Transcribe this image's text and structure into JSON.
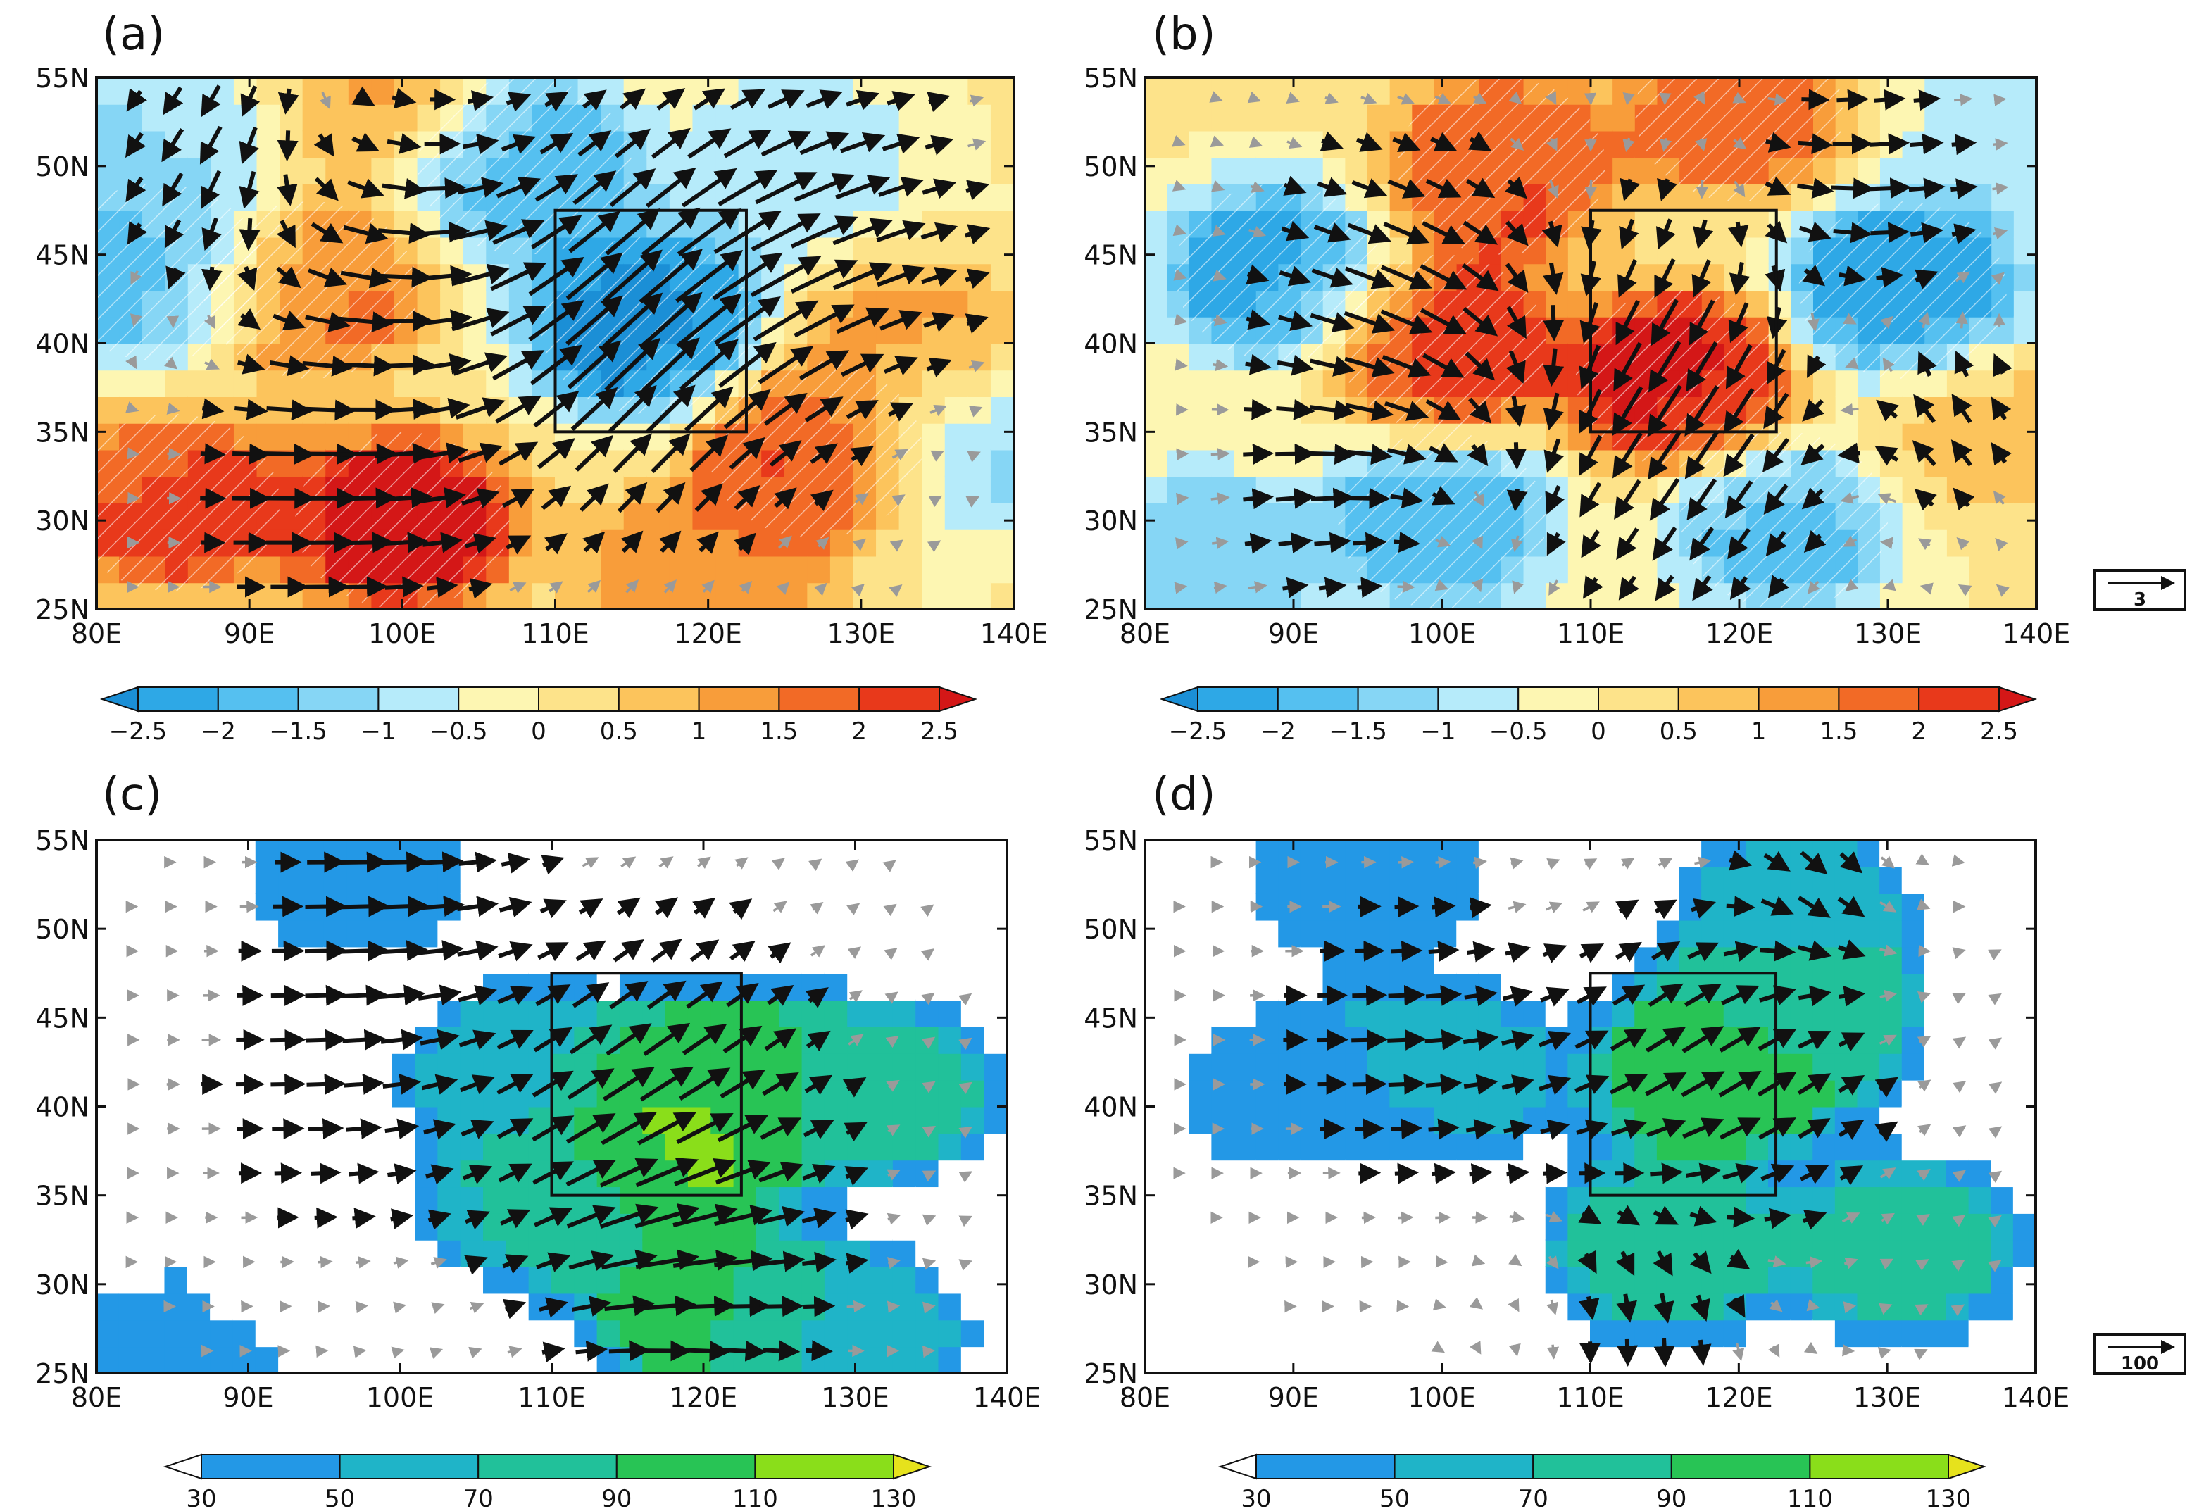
{
  "chart_data": [
    {
      "type": "heatmap",
      "panel_label": "(a)",
      "lon_range": [
        80,
        140
      ],
      "lat_range": [
        25,
        55
      ],
      "x_ticks": [
        "80E",
        "90E",
        "100E",
        "110E",
        "120E",
        "130E",
        "140E"
      ],
      "y_ticks": [
        "25N",
        "30N",
        "35N",
        "40N",
        "45N",
        "50N",
        "55N"
      ],
      "box": {
        "lon": [
          110,
          122.5
        ],
        "lat": [
          35,
          47.5
        ]
      },
      "colormap": "diverging",
      "field_centers": [
        {
          "lon": 116,
          "lat": 41,
          "value": -2.6
        },
        {
          "lon": 84,
          "lat": 44,
          "value": -1.8
        },
        {
          "lon": 108,
          "lat": 50,
          "value": -1.8
        },
        {
          "lon": 137,
          "lat": 34,
          "value": -1.2
        },
        {
          "lon": 126,
          "lat": 50,
          "value": -0.8
        },
        {
          "lon": 86,
          "lat": 52,
          "value": -1.0
        },
        {
          "lon": 100,
          "lat": 30,
          "value": 2.6
        },
        {
          "lon": 85,
          "lat": 31,
          "value": 2.0
        },
        {
          "lon": 127,
          "lat": 34,
          "value": 2.2
        },
        {
          "lon": 94,
          "lat": 43,
          "value": 1.6
        },
        {
          "lon": 98,
          "lat": 54,
          "value": 1.2
        },
        {
          "lon": 133,
          "lat": 40,
          "value": 1.1
        },
        {
          "lon": 120,
          "lat": 27,
          "value": 1.4
        }
      ],
      "wind_centers": [
        {
          "lon": 116,
          "lat": 41,
          "u": 3.2,
          "v": 3.6,
          "r": 12
        },
        {
          "lon": 96,
          "lat": 31,
          "u": 3.6,
          "v": 0,
          "r": 9
        },
        {
          "lon": 100,
          "lat": 45,
          "u": 3,
          "v": -0.6,
          "r": 10
        },
        {
          "lon": 88,
          "lat": 50,
          "u": -1.8,
          "v": -2.4,
          "r": 8
        },
        {
          "lon": 128,
          "lat": 46,
          "u": 3.4,
          "v": 0.8,
          "r": 10
        }
      ],
      "colorbar": {
        "labels": [
          "−2.5",
          "−2",
          "−1.5",
          "−1",
          "−0.5",
          "0",
          "0.5",
          "1",
          "1.5",
          "2",
          "2.5"
        ],
        "colors": [
          "#1b8fd6",
          "#2ea8e6",
          "#55c0f0",
          "#86d6f5",
          "#b6ebfa",
          "#fdf6b2",
          "#fde38a",
          "#fcc45c",
          "#f89d3a",
          "#f26a26",
          "#e8391b",
          "#d41717"
        ]
      }
    },
    {
      "type": "heatmap",
      "panel_label": "(b)",
      "lon_range": [
        80,
        140
      ],
      "lat_range": [
        25,
        55
      ],
      "x_ticks": [
        "80E",
        "90E",
        "100E",
        "110E",
        "120E",
        "130E",
        "140E"
      ],
      "y_ticks": [
        "25N",
        "30N",
        "35N",
        "40N",
        "45N",
        "50N",
        "55N"
      ],
      "box": {
        "lon": [
          110,
          122.5
        ],
        "lat": [
          35,
          47.5
        ]
      },
      "colormap": "diverging",
      "field_centers": [
        {
          "lon": 116,
          "lat": 38,
          "value": 2.6
        },
        {
          "lon": 100,
          "lat": 40,
          "value": 2.3
        },
        {
          "lon": 104,
          "lat": 50,
          "value": 2.0
        },
        {
          "lon": 120,
          "lat": 53,
          "value": 1.6
        },
        {
          "lon": 136,
          "lat": 35,
          "value": 0.8
        },
        {
          "lon": 89,
          "lat": 44,
          "value": -2.1
        },
        {
          "lon": 131,
          "lat": 43,
          "value": -2.4
        },
        {
          "lon": 100,
          "lat": 30,
          "value": -1.7
        },
        {
          "lon": 123,
          "lat": 30,
          "value": -1.6
        },
        {
          "lon": 84,
          "lat": 28,
          "value": -1.2
        },
        {
          "lon": 138,
          "lat": 52,
          "value": -0.7
        }
      ],
      "wind_centers": [
        {
          "lon": 116,
          "lat": 37,
          "u": -2.4,
          "v": -3.4,
          "r": 12
        },
        {
          "lon": 98,
          "lat": 43,
          "u": 3.4,
          "v": -1.2,
          "r": 10
        },
        {
          "lon": 128,
          "lat": 48,
          "u": 3.2,
          "v": 0.4,
          "r": 9
        },
        {
          "lon": 92,
          "lat": 31,
          "u": 2.2,
          "v": 0.4,
          "r": 8
        },
        {
          "lon": 133,
          "lat": 36,
          "u": -1.4,
          "v": 2.2,
          "r": 7
        }
      ],
      "colorbar": {
        "labels": [
          "−2.5",
          "−2",
          "−1.5",
          "−1",
          "−0.5",
          "0",
          "0.5",
          "1",
          "1.5",
          "2",
          "2.5"
        ],
        "colors": [
          "#1b8fd6",
          "#2ea8e6",
          "#55c0f0",
          "#86d6f5",
          "#b6ebfa",
          "#fdf6b2",
          "#fde38a",
          "#fcc45c",
          "#f89d3a",
          "#f26a26",
          "#e8391b",
          "#d41717"
        ]
      },
      "reference_vector": {
        "label": "3"
      }
    },
    {
      "type": "heatmap",
      "panel_label": "(c)",
      "lon_range": [
        80,
        140
      ],
      "lat_range": [
        25,
        55
      ],
      "x_ticks": [
        "80E",
        "90E",
        "100E",
        "110E",
        "120E",
        "130E",
        "140E"
      ],
      "y_ticks": [
        "25N",
        "30N",
        "35N",
        "40N",
        "45N",
        "50N",
        "55N"
      ],
      "box": {
        "lon": [
          110,
          122.5
        ],
        "lat": [
          35,
          47.5
        ]
      },
      "colormap": "magnitude",
      "field_centers": [
        {
          "lon": 117,
          "lat": 39,
          "value": 125
        },
        {
          "lon": 122,
          "lat": 41,
          "value": 100
        },
        {
          "lon": 120,
          "lat": 29,
          "value": 95
        },
        {
          "lon": 110,
          "lat": 35,
          "value": 75
        },
        {
          "lon": 132,
          "lat": 41,
          "value": 70
        },
        {
          "lon": 108,
          "lat": 42,
          "value": 55
        },
        {
          "lon": 97,
          "lat": 53,
          "value": 45
        },
        {
          "lon": 86,
          "lat": 26,
          "value": 40
        },
        {
          "lon": 130,
          "lat": 27,
          "value": 60
        },
        {
          "lon": 86,
          "lat": 42,
          "value": 10
        },
        {
          "lon": 95,
          "lat": 31,
          "value": 5
        }
      ],
      "wind_centers": [
        {
          "lon": 117,
          "lat": 40,
          "u": 80,
          "v": 60,
          "r": 12
        },
        {
          "lon": 100,
          "lat": 53,
          "u": 75,
          "v": 0,
          "r": 8
        },
        {
          "lon": 120,
          "lat": 29,
          "u": 70,
          "v": -20,
          "r": 9
        },
        {
          "lon": 95,
          "lat": 41,
          "u": 55,
          "v": 0,
          "r": 10
        }
      ],
      "colorbar": {
        "labels": [
          "30",
          "50",
          "70",
          "90",
          "110",
          "130"
        ],
        "colors": [
          "#ffffff",
          "#2398e6",
          "#1fb4c8",
          "#21c19a",
          "#28c455",
          "#8ade1a",
          "#e6e21c"
        ]
      }
    },
    {
      "type": "heatmap",
      "panel_label": "(d)",
      "lon_range": [
        80,
        140
      ],
      "lat_range": [
        25,
        55
      ],
      "x_ticks": [
        "80E",
        "90E",
        "100E",
        "110E",
        "120E",
        "130E",
        "140E"
      ],
      "y_ticks": [
        "25N",
        "30N",
        "35N",
        "40N",
        "45N",
        "50N",
        "55N"
      ],
      "box": {
        "lon": [
          110,
          122.5
        ],
        "lat": [
          35,
          47.5
        ]
      },
      "colormap": "magnitude",
      "field_centers": [
        {
          "lon": 118,
          "lat": 42,
          "value": 100
        },
        {
          "lon": 124,
          "lat": 45,
          "value": 85
        },
        {
          "lon": 115,
          "lat": 32,
          "value": 80
        },
        {
          "lon": 131,
          "lat": 32,
          "value": 75
        },
        {
          "lon": 124,
          "lat": 51,
          "value": 60
        },
        {
          "lon": 100,
          "lat": 42,
          "value": 58
        },
        {
          "lon": 95,
          "lat": 53,
          "value": 48
        },
        {
          "lon": 90,
          "lat": 41,
          "value": 42
        },
        {
          "lon": 85,
          "lat": 30,
          "value": 0
        },
        {
          "lon": 97,
          "lat": 33,
          "value": 0
        }
      ],
      "wind_centers": [
        {
          "lon": 118,
          "lat": 40,
          "u": 75,
          "v": 55,
          "r": 12
        },
        {
          "lon": 115,
          "lat": 30,
          "u": -20,
          "v": -70,
          "r": 9
        },
        {
          "lon": 97,
          "lat": 44,
          "u": 60,
          "v": 0,
          "r": 10
        },
        {
          "lon": 125,
          "lat": 52,
          "u": 30,
          "v": -50,
          "r": 6
        }
      ],
      "colorbar": {
        "labels": [
          "30",
          "50",
          "70",
          "90",
          "110",
          "130"
        ],
        "colors": [
          "#ffffff",
          "#2398e6",
          "#1fb4c8",
          "#21c19a",
          "#28c455",
          "#8ade1a",
          "#e6e21c"
        ]
      },
      "reference_vector": {
        "label": "100"
      }
    }
  ]
}
